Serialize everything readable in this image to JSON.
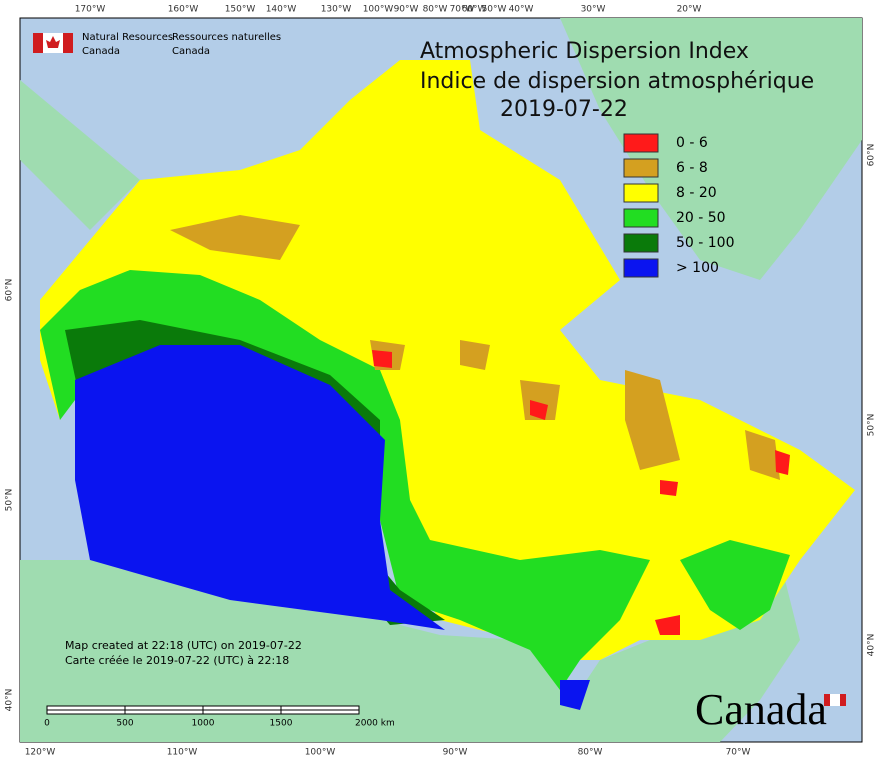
{
  "header": {
    "org_en": [
      "Natural Resources",
      "Canada"
    ],
    "org_fr": [
      "Ressources naturelles",
      "Canada"
    ]
  },
  "title": [
    "Atmospheric Dispersion Index",
    "Indice de dispersion atmosphérique",
    "2019-07-22"
  ],
  "legend": [
    {
      "label": "0 - 6",
      "color": "#ff1a1a"
    },
    {
      "label": "6 - 8",
      "color": "#d4a020"
    },
    {
      "label": "8 - 20",
      "color": "#ffff00"
    },
    {
      "label": "20 - 50",
      "color": "#22dd22"
    },
    {
      "label": "50 - 100",
      "color": "#0a7a0a"
    },
    {
      "label": "> 100",
      "color": "#0a14f0"
    }
  ],
  "top_longitudes": [
    "170°W",
    "160°W",
    "150°W",
    "140°W",
    "130°W",
    "100°W",
    "90°W",
    "80°W",
    "70°W",
    "60°W",
    "50°W",
    "40°W",
    "30°W",
    "20°W"
  ],
  "bottom_longitudes": [
    "120°W",
    "110°W",
    "100°W",
    "90°W",
    "80°W",
    "70°W"
  ],
  "left_latitudes": [
    "60°N",
    "50°N",
    "40°N"
  ],
  "right_latitudes": [
    "60°N",
    "50°N",
    "40°N"
  ],
  "credits": [
    "Map created at 22:18 (UTC) on 2019-07-22",
    "Carte créée le 2019-07-22 (UTC) à 22:18"
  ],
  "scale_bar": [
    "0",
    "500",
    "1000",
    "1500",
    "2000 km"
  ],
  "wordmark": "Canada"
}
